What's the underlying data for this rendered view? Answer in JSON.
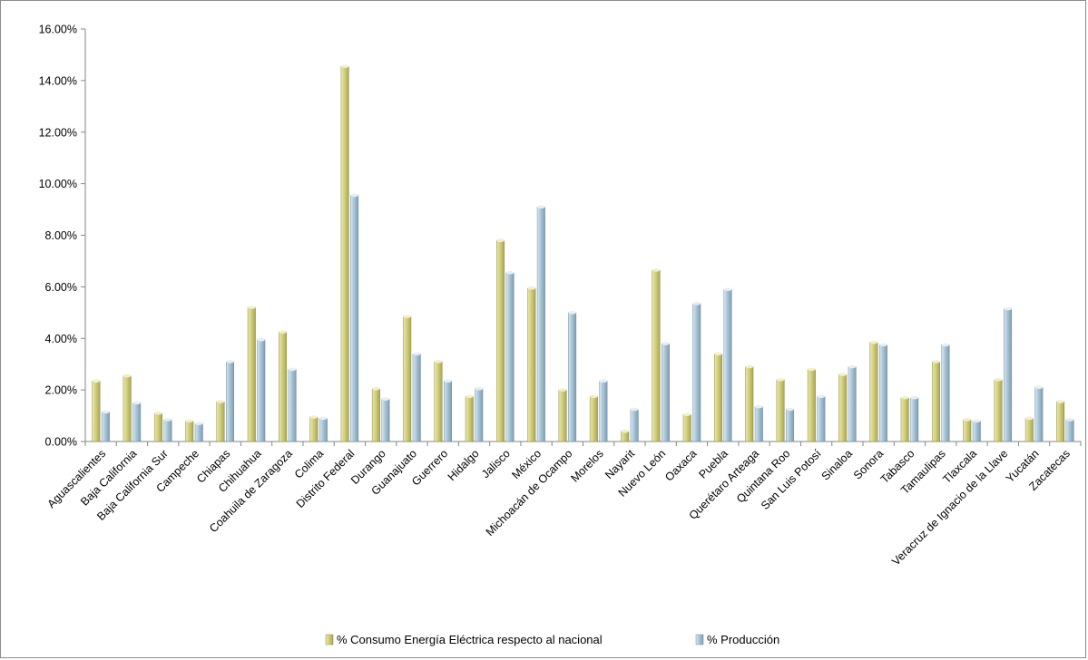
{
  "chart_data": {
    "type": "bar",
    "title": "",
    "xlabel": "",
    "ylabel": "",
    "ylim": [
      0,
      0.16
    ],
    "y_ticks": [
      "0.00%",
      "2.00%",
      "4.00%",
      "6.00%",
      "8.00%",
      "10.00%",
      "12.00%",
      "14.00%",
      "16.00%"
    ],
    "grid": "none",
    "legend_position": "bottom",
    "categories": [
      "Aguascalientes",
      "Baja California",
      "Baja California Sur",
      "Campeche",
      "Chiapas",
      "Chihuahua",
      "Coahuila de Zaragoza",
      "Colima",
      "Distrito Federal",
      "Durango",
      "Guanajuato",
      "Guerrero",
      "Hidalgo",
      "Jalisco",
      "México",
      "Michoacán de Ocampo",
      "Morelos",
      "Nayarit",
      "Nuevo León",
      "Oaxaca",
      "Puebla",
      "Querétaro Arteaga",
      "Quintana Roo",
      "San Luis Potosí",
      "Sinaloa",
      "Sonora",
      "Tabasco",
      "Tamaulipas",
      "Tlaxcala",
      "Veracruz de Ignacio de la Llave",
      "Yucatán",
      "Zacatecas"
    ],
    "series": [
      {
        "name": "% Consumo Energía Eléctrica respecto al nacional",
        "color": "#d2cf7a",
        "values": [
          0.0235,
          0.0255,
          0.011,
          0.008,
          0.0155,
          0.052,
          0.0425,
          0.0095,
          0.1455,
          0.0205,
          0.0485,
          0.031,
          0.0175,
          0.078,
          0.0595,
          0.02,
          0.0175,
          0.004,
          0.0665,
          0.0105,
          0.034,
          0.029,
          0.024,
          0.028,
          0.026,
          0.0385,
          0.017,
          0.031,
          0.0085,
          0.024,
          0.009,
          0.0155
        ]
      },
      {
        "name": "% Producción",
        "color": "#a9c4d6",
        "values": [
          0.0115,
          0.015,
          0.0085,
          0.007,
          0.031,
          0.0395,
          0.028,
          0.009,
          0.0955,
          0.0165,
          0.034,
          0.0235,
          0.0205,
          0.0655,
          0.091,
          0.05,
          0.0235,
          0.0125,
          0.038,
          0.0535,
          0.059,
          0.0135,
          0.0125,
          0.0175,
          0.029,
          0.0375,
          0.017,
          0.0375,
          0.008,
          0.0515,
          0.021,
          0.0085
        ]
      }
    ]
  }
}
